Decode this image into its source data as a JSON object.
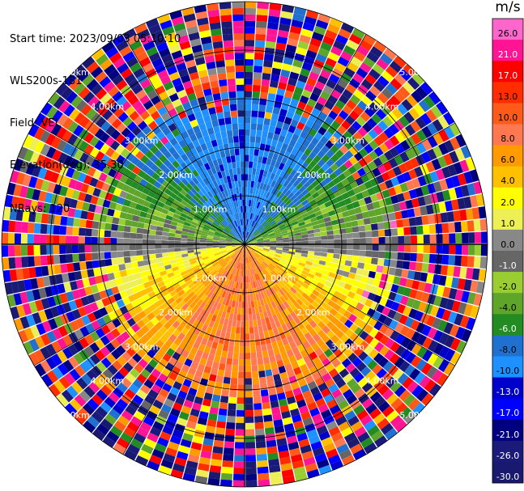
{
  "header": {
    "start_time": "Start time: 2023/09/03 05:10:10",
    "instrument": "WLS200s-181",
    "field": "Field: VEL",
    "elevation": "Elevation(deg): 35.30",
    "nrays": "NRays: 120"
  },
  "colorbar": {
    "title": "m/s",
    "levels": [
      "26.0",
      "21.0",
      "17.0",
      "13.0",
      "10.0",
      "8.0",
      "6.0",
      "4.0",
      "2.0",
      "1.0",
      "0.0",
      "-1.0",
      "-2.0",
      "-4.0",
      "-6.0",
      "-8.0",
      "-10.0",
      "-13.0",
      "-17.0",
      "-21.0",
      "-26.0",
      "-30.0"
    ],
    "colors": [
      "#ff66cc",
      "#ff1493",
      "#ff0000",
      "#ff2d00",
      "#ff5a1a",
      "#ff7850",
      "#ff9a00",
      "#ffc000",
      "#ffff00",
      "#eeee55",
      "#888888",
      "#666666",
      "#9acd32",
      "#5fa52a",
      "#228b22",
      "#2070d0",
      "#1e90ff",
      "#0000cd",
      "#0000ff",
      "#000080",
      "#1a1a7a",
      "#191970"
    ]
  },
  "chart_data": {
    "type": "ppi",
    "field": "VEL",
    "units": "m/s",
    "nrays": 120,
    "elevation_deg": 35.3,
    "max_range_km": 5.0,
    "range_rings_km": [
      1.0,
      2.0,
      3.0,
      4.0,
      5.0
    ],
    "ring_labels": [
      "1.00km",
      "2.00km",
      "3.00km",
      "4.00km",
      "5.00km"
    ],
    "clim": [
      -30.0,
      26.0
    ]
  }
}
